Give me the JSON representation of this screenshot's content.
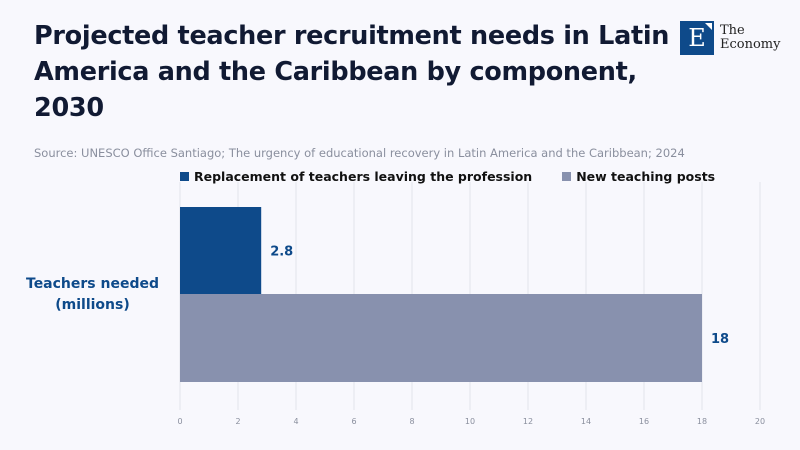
{
  "title": "Projected teacher recruitment needs in Latin America and the Caribbean by component, 2030",
  "source": "Source: UNESCO Office Santiago; The urgency of educational recovery in Latin America and the Caribbean; 2024",
  "logo": {
    "line1": "The",
    "line2": "Economy",
    "letter": "E"
  },
  "colors": {
    "replacement": "#0e4a8a",
    "new": "#8891ae"
  },
  "chart_data": {
    "type": "bar",
    "orientation": "horizontal",
    "title": "Projected teacher recruitment needs in Latin America and the Caribbean by component, 2030",
    "categories": [
      "Teachers needed (millions)"
    ],
    "ylabel_lines": [
      "Teachers needed",
      "(millions)"
    ],
    "series": [
      {
        "name": "Replacement of teachers leaving the profession",
        "values": [
          2.8
        ],
        "label": "2.8"
      },
      {
        "name": "New teaching posts",
        "values": [
          18
        ],
        "label": "18"
      }
    ],
    "xlim": [
      0,
      20
    ],
    "xticks": [
      "0",
      "2",
      "4",
      "6",
      "8",
      "10",
      "12",
      "14",
      "16",
      "18",
      "20"
    ],
    "grid": true,
    "legend": "top"
  }
}
